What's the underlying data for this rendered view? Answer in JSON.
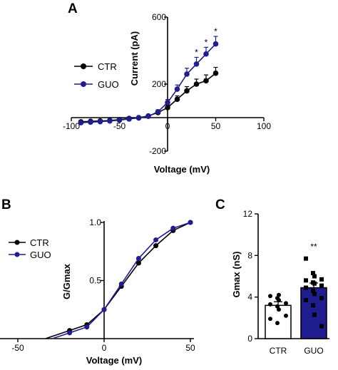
{
  "colors": {
    "CTR": "#000000",
    "GUO": "#1f1d8f",
    "axis": "#000000"
  },
  "chart_data": [
    {
      "panel": "A",
      "type": "line",
      "xlabel": "Voltage (mV)",
      "ylabel": "Current (pA)",
      "xlim": [
        -100,
        100
      ],
      "ylim": [
        -200,
        600
      ],
      "x_tick_labels": [
        "-100",
        "-50",
        "0",
        "50",
        "100"
      ],
      "x_ticks": [
        -100,
        -50,
        0,
        50,
        100
      ],
      "y_tick_labels": [
        "-200",
        "200",
        "600"
      ],
      "y_ticks": [
        -200,
        200,
        600
      ],
      "x": [
        -90,
        -80,
        -70,
        -60,
        -50,
        -40,
        -30,
        -20,
        -10,
        0,
        10,
        20,
        30,
        40,
        50
      ],
      "series": [
        {
          "name": "CTR",
          "values": [
            -25,
            -22,
            -20,
            -17,
            -12,
            -5,
            0,
            10,
            30,
            60,
            110,
            160,
            200,
            220,
            265
          ],
          "errors": [
            5,
            5,
            5,
            5,
            5,
            5,
            5,
            8,
            10,
            15,
            20,
            25,
            30,
            35,
            35
          ]
        },
        {
          "name": "GUO",
          "values": [
            -30,
            -27,
            -24,
            -20,
            -15,
            -8,
            -2,
            8,
            35,
            90,
            170,
            260,
            320,
            380,
            440
          ],
          "errors": [
            5,
            5,
            5,
            5,
            5,
            5,
            5,
            8,
            12,
            18,
            25,
            35,
            40,
            40,
            45
          ]
        }
      ],
      "annotations": [
        {
          "x": 30,
          "text": "*"
        },
        {
          "x": 40,
          "text": "*"
        },
        {
          "x": 50,
          "text": "*"
        }
      ],
      "legend": "left"
    },
    {
      "panel": "B",
      "type": "line",
      "xlabel": "Voltage (mV)",
      "ylabel": "G/Gmax",
      "xlim": [
        -50,
        50
      ],
      "ylim": [
        0,
        1
      ],
      "x_tick_labels": [
        "-50",
        "0",
        "50"
      ],
      "x_ticks": [
        -50,
        0,
        50
      ],
      "y_tick_labels": [
        "0.5",
        "1.0"
      ],
      "y_ticks": [
        0.5,
        1.0
      ],
      "x": [
        -20,
        -10,
        0,
        10,
        20,
        30,
        40,
        50
      ],
      "series": [
        {
          "name": "CTR",
          "values": [
            0.07,
            0.12,
            0.25,
            0.45,
            0.65,
            0.8,
            0.93,
            1.0
          ]
        },
        {
          "name": "GUO",
          "values": [
            0.05,
            0.1,
            0.25,
            0.47,
            0.69,
            0.85,
            0.95,
            1.0
          ]
        }
      ],
      "legend": "left"
    },
    {
      "panel": "C",
      "type": "bar",
      "ylabel": "Gmax (nS)",
      "categories": [
        "CTR",
        "GUO"
      ],
      "values": [
        3.2,
        4.9
      ],
      "errors": [
        0.35,
        0.45
      ],
      "ylim": [
        0,
        12
      ],
      "y_tick_labels": [
        "0",
        "4",
        "8",
        "12"
      ],
      "y_ticks": [
        0,
        4,
        8,
        12
      ],
      "points": [
        [
          4.1,
          3.9,
          3.7,
          3.4,
          3.3,
          3.1,
          2.8,
          2.2,
          1.9,
          1.5,
          4.2
        ],
        [
          7.7,
          6.3,
          6.0,
          5.7,
          5.6,
          5.4,
          5.3,
          5.1,
          4.9,
          4.6,
          4.3,
          3.9,
          3.7,
          3.2,
          2.3,
          1.2
        ]
      ],
      "annotations": [
        {
          "category": "GUO",
          "text": "**"
        }
      ]
    }
  ]
}
